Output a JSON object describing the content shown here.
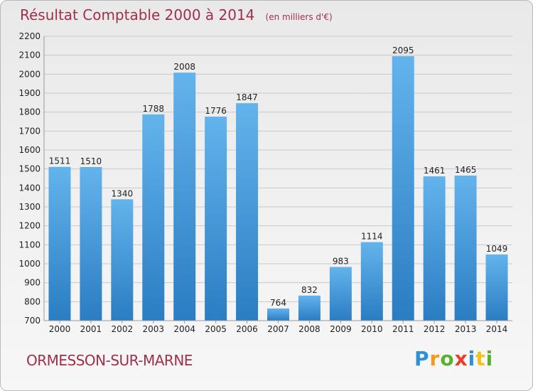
{
  "header": {
    "title": "Résultat Comptable 2000 à 2014",
    "subtitle": "(en milliers d'€)"
  },
  "footer": {
    "location": "ORMESSON-SUR-MARNE",
    "logo_text": "Proxiti",
    "logo_letters": [
      "P",
      "r",
      "o",
      "x",
      "i",
      "t",
      "i"
    ]
  },
  "colors": {
    "title": "#a0304a",
    "bar_light": "#63b3ec",
    "bar_dark": "#2a7dc2",
    "grid": "#c9c9c9"
  },
  "chart_data": {
    "type": "bar",
    "title": "Résultat Comptable 2000 à 2014",
    "subtitle": "(en milliers d'€)",
    "xlabel": "",
    "ylabel": "",
    "categories": [
      "2000",
      "2001",
      "2002",
      "2003",
      "2004",
      "2005",
      "2006",
      "2007",
      "2008",
      "2009",
      "2010",
      "2011",
      "2012",
      "2013",
      "2014"
    ],
    "values": [
      1511,
      1510,
      1340,
      1788,
      2008,
      1776,
      1847,
      764,
      832,
      983,
      1114,
      2095,
      1461,
      1465,
      1049
    ],
    "ylim": [
      700,
      2200
    ],
    "yticks": [
      700,
      800,
      900,
      1000,
      1100,
      1200,
      1300,
      1400,
      1500,
      1600,
      1700,
      1800,
      1900,
      2000,
      2100,
      2200
    ],
    "grid": true,
    "legend": "none"
  }
}
